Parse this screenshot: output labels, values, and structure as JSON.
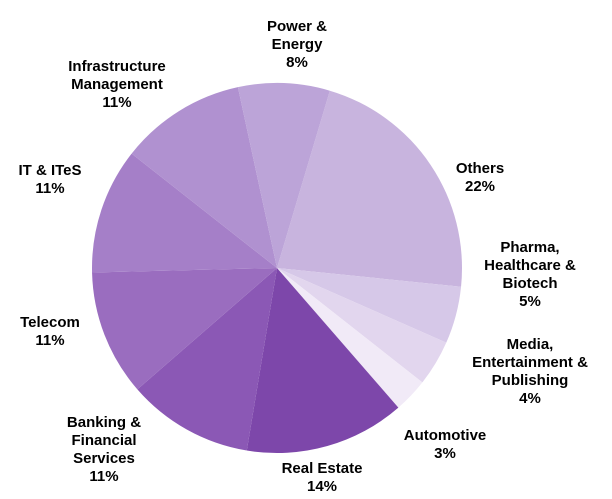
{
  "chart_data": {
    "type": "pie",
    "categories": [
      "Others",
      "Pharma, Healthcare & Biotech",
      "Media, Entertainment & Publishing",
      "Automotive",
      "Real Estate",
      "Banking & Financial Services",
      "Telecom",
      "IT & ITeS",
      "Infrastructure Management",
      "Power & Energy"
    ],
    "values": [
      22,
      5,
      4,
      3,
      14,
      11,
      11,
      11,
      11,
      8
    ],
    "value_labels": [
      "22%",
      "5%",
      "4%",
      "3%",
      "14%",
      "11%",
      "11%",
      "11%",
      "11%",
      "8%"
    ],
    "colors": [
      "#c8b4de",
      "#d6c8e8",
      "#e2d6ee",
      "#f1eaf7",
      "#7d47aa",
      "#8b58b5",
      "#9a6dbf",
      "#a57fc8",
      "#b091d0",
      "#bca4d8"
    ]
  }
}
